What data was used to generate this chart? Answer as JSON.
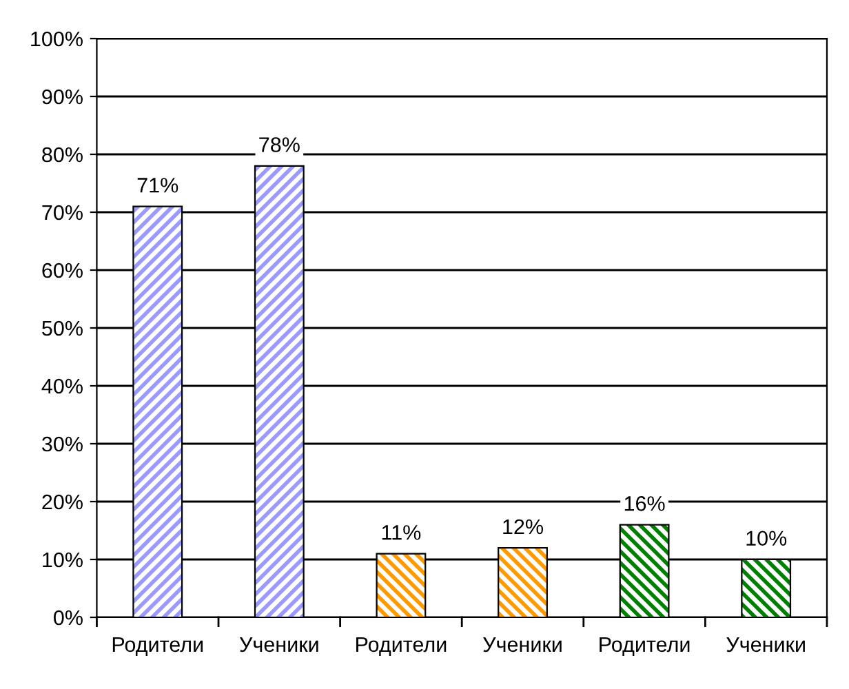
{
  "chart_data": {
    "type": "bar",
    "categories": [
      "Родители",
      "Ученики",
      "Родители",
      "Ученики",
      "Родители",
      "Ученики"
    ],
    "values": [
      71,
      78,
      11,
      12,
      16,
      10
    ],
    "colors": [
      "#9999ff",
      "#9999ff",
      "#ff9900",
      "#ff9900",
      "#008000",
      "#008000"
    ],
    "value_labels": [
      "71%",
      "78%",
      "11%",
      "12%",
      "16%",
      "10%"
    ],
    "ylim": [
      0,
      100
    ],
    "yticks": [
      {
        "value": 0,
        "label": "0%"
      },
      {
        "value": 10,
        "label": "10%"
      },
      {
        "value": 20,
        "label": "20%"
      },
      {
        "value": 30,
        "label": "30%"
      },
      {
        "value": 40,
        "label": "40%"
      },
      {
        "value": 50,
        "label": "50%"
      },
      {
        "value": 60,
        "label": "60%"
      },
      {
        "value": 70,
        "label": "70%"
      },
      {
        "value": 80,
        "label": "80%"
      },
      {
        "value": 90,
        "label": "90%"
      },
      {
        "value": 100,
        "label": "100%"
      }
    ],
    "grid": "y"
  }
}
